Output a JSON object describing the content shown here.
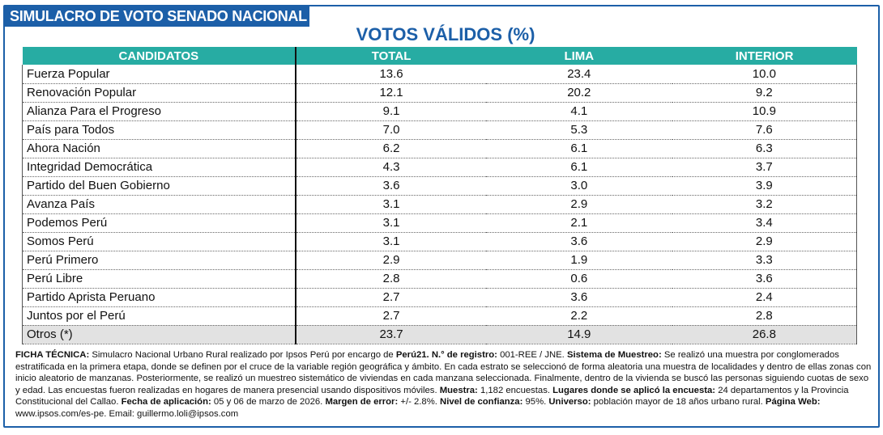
{
  "title": "SIMULACRO DE VOTO SENADO NACIONAL",
  "subtitle": "VOTOS VÁLIDOS (%)",
  "columns": [
    "CANDIDATOS",
    "TOTAL",
    "LIMA",
    "INTERIOR"
  ],
  "rows": [
    [
      "Fuerza Popular",
      "13.6",
      "23.4",
      "10.0"
    ],
    [
      "Renovación Popular",
      "12.1",
      "20.2",
      "9.2"
    ],
    [
      "Alianza Para el Progreso",
      "9.1",
      "4.1",
      "10.9"
    ],
    [
      "País para Todos",
      "7.0",
      "5.3",
      "7.6"
    ],
    [
      "Ahora Nación",
      "6.2",
      "6.1",
      "6.3"
    ],
    [
      "Integridad Democrática",
      "4.3",
      "6.1",
      "3.7"
    ],
    [
      "Partido del Buen Gobierno",
      "3.6",
      "3.0",
      "3.9"
    ],
    [
      "Avanza País",
      "3.1",
      "2.9",
      "3.2"
    ],
    [
      "Podemos Perú",
      "3.1",
      "2.1",
      "3.4"
    ],
    [
      "Somos Perú",
      "3.1",
      "3.6",
      "2.9"
    ],
    [
      "Perú Primero",
      "2.9",
      "1.9",
      "3.3"
    ],
    [
      "Perú Libre",
      "2.8",
      "0.6",
      "3.6"
    ],
    [
      "Partido Aprista Peruano",
      "2.7",
      "3.6",
      "2.4"
    ],
    [
      "Juntos por el Perú",
      "2.7",
      "2.2",
      "2.8"
    ],
    [
      "Otros (*)",
      "23.7",
      "14.9",
      "26.8"
    ]
  ],
  "note": [
    {
      "b": true,
      "t": "FICHA TÉCNICA: "
    },
    {
      "b": false,
      "t": "Simulacro Nacional Urbano Rural realizado por Ipsos Perú por encargo de "
    },
    {
      "b": true,
      "t": "Perú21. N.° de registro: "
    },
    {
      "b": false,
      "t": "001-REE / JNE. "
    },
    {
      "b": true,
      "t": "Sistema de Muestreo: "
    },
    {
      "b": false,
      "t": "Se realizó una muestra por conglomerados estratificada en la primera etapa, donde se definen por el cruce de la variable región geográfica y ámbito. En cada estrato se seleccionó de forma aleatoria una muestra de localidades y dentro de ellas zonas con inicio aleatorio de manzanas. Posteriormente, se realizó un muestreo sistemático de viviendas en cada manzana seleccionada. Finalmente, dentro de la vivienda se buscó las personas siguiendo cuotas de sexo y edad. Las encuestas fueron realizadas en hogares de manera presencial usando dispositivos móviles. "
    },
    {
      "b": true,
      "t": "Muestra: "
    },
    {
      "b": false,
      "t": "1,182 encuestas. "
    },
    {
      "b": true,
      "t": "Lugares donde se aplicó la encuesta: "
    },
    {
      "b": false,
      "t": "24 departamentos y la Provincia Constitucional del Callao. "
    },
    {
      "b": true,
      "t": "Fecha de aplicación: "
    },
    {
      "b": false,
      "t": "05 y 06 de marzo de 2026. "
    },
    {
      "b": true,
      "t": "Margen de error: "
    },
    {
      "b": false,
      "t": "+/- 2.8%. "
    },
    {
      "b": true,
      "t": "Nivel de confianza: "
    },
    {
      "b": false,
      "t": "95%. "
    },
    {
      "b": true,
      "t": "Universo: "
    },
    {
      "b": false,
      "t": "población mayor de 18 años urbano rural. "
    },
    {
      "b": true,
      "t": "Página Web: "
    },
    {
      "b": false,
      "t": "www.ipsos.com/es-pe. Email: guillermo.loli@ipsos.com"
    }
  ]
}
